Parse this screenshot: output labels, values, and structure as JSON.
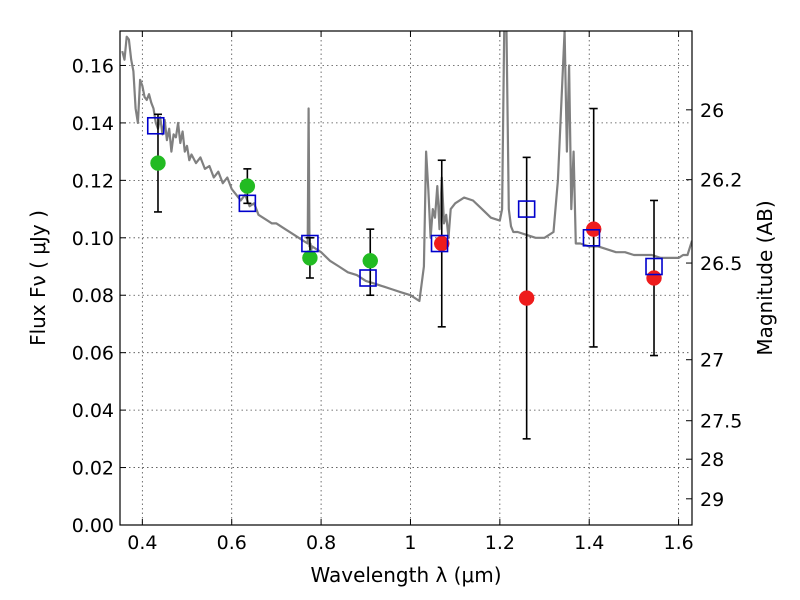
{
  "chart_data": {
    "type": "scatter",
    "title": "",
    "xlabel": "Wavelength  λ (μm)",
    "ylabel": "Flux  Fν  ( μJy )",
    "ylabel_right": "Magnitude (AB)",
    "xlim": [
      0.35,
      1.63
    ],
    "ylim": [
      0,
      0.172
    ],
    "grid": true,
    "x_ticks": [
      {
        "value": 0.4,
        "label": "0.4"
      },
      {
        "value": 0.6,
        "label": "0.6"
      },
      {
        "value": 0.8,
        "label": "0.8"
      },
      {
        "value": 1.0,
        "label": "1"
      },
      {
        "value": 1.2,
        "label": "1.2"
      },
      {
        "value": 1.4,
        "label": "1.4"
      },
      {
        "value": 1.6,
        "label": "1.6"
      }
    ],
    "y_ticks": [
      {
        "value": 0.0,
        "label": "0.00"
      },
      {
        "value": 0.02,
        "label": "0.02"
      },
      {
        "value": 0.04,
        "label": "0.04"
      },
      {
        "value": 0.06,
        "label": "0.06"
      },
      {
        "value": 0.08,
        "label": "0.08"
      },
      {
        "value": 0.1,
        "label": "0.10"
      },
      {
        "value": 0.12,
        "label": "0.12"
      },
      {
        "value": 0.14,
        "label": "0.14"
      },
      {
        "value": 0.16,
        "label": "0.16"
      }
    ],
    "mag_ticks": [
      {
        "value": 26,
        "label": "26"
      },
      {
        "value": 26.2,
        "label": "26.2"
      },
      {
        "value": 26.5,
        "label": "26.5"
      },
      {
        "value": 27,
        "label": "27"
      },
      {
        "value": 27.5,
        "label": "27.5"
      },
      {
        "value": 28,
        "label": "28"
      },
      {
        "value": 29,
        "label": "29"
      }
    ],
    "colors": {
      "model": "#808080",
      "observed_optical": "#22bb22",
      "observed_nir": "#ee1c1c",
      "model_points": "#0000cc",
      "errorbar": "#000000"
    },
    "model_spectrum": {
      "name": "",
      "x": [
        0.355,
        0.36,
        0.365,
        0.37,
        0.375,
        0.38,
        0.385,
        0.39,
        0.395,
        0.4,
        0.405,
        0.41,
        0.415,
        0.42,
        0.425,
        0.43,
        0.435,
        0.44,
        0.445,
        0.45,
        0.455,
        0.46,
        0.465,
        0.47,
        0.475,
        0.48,
        0.485,
        0.49,
        0.495,
        0.5,
        0.505,
        0.51,
        0.52,
        0.53,
        0.54,
        0.55,
        0.56,
        0.57,
        0.58,
        0.59,
        0.6,
        0.61,
        0.62,
        0.63,
        0.64,
        0.65,
        0.66,
        0.67,
        0.68,
        0.69,
        0.7,
        0.72,
        0.74,
        0.76,
        0.77,
        0.772,
        0.774,
        0.776,
        0.778,
        0.78,
        0.8,
        0.82,
        0.84,
        0.86,
        0.88,
        0.9,
        0.92,
        0.94,
        0.96,
        0.98,
        1.0,
        1.02,
        1.03,
        1.035,
        1.04,
        1.045,
        1.05,
        1.055,
        1.06,
        1.065,
        1.07,
        1.075,
        1.08,
        1.085,
        1.09,
        1.1,
        1.12,
        1.14,
        1.16,
        1.18,
        1.2,
        1.205,
        1.21,
        1.215,
        1.22,
        1.225,
        1.23,
        1.24,
        1.26,
        1.28,
        1.3,
        1.32,
        1.33,
        1.34,
        1.345,
        1.35,
        1.355,
        1.36,
        1.365,
        1.37,
        1.38,
        1.4,
        1.42,
        1.44,
        1.46,
        1.48,
        1.5,
        1.52,
        1.54,
        1.56,
        1.58,
        1.6,
        1.61,
        1.62,
        1.63
      ],
      "y": [
        0.165,
        0.162,
        0.17,
        0.169,
        0.162,
        0.158,
        0.145,
        0.14,
        0.155,
        0.153,
        0.149,
        0.148,
        0.15,
        0.147,
        0.145,
        0.14,
        0.138,
        0.142,
        0.136,
        0.141,
        0.134,
        0.138,
        0.13,
        0.136,
        0.135,
        0.14,
        0.133,
        0.137,
        0.13,
        0.132,
        0.127,
        0.129,
        0.126,
        0.128,
        0.124,
        0.125,
        0.121,
        0.123,
        0.119,
        0.121,
        0.117,
        0.115,
        0.113,
        0.115,
        0.111,
        0.112,
        0.108,
        0.107,
        0.106,
        0.105,
        0.105,
        0.103,
        0.101,
        0.099,
        0.098,
        0.145,
        0.097,
        0.098,
        0.096,
        0.097,
        0.095,
        0.092,
        0.09,
        0.088,
        0.087,
        0.085,
        0.084,
        0.083,
        0.082,
        0.081,
        0.08,
        0.078,
        0.09,
        0.13,
        0.117,
        0.1,
        0.11,
        0.107,
        0.118,
        0.103,
        0.121,
        0.105,
        0.108,
        0.1,
        0.11,
        0.112,
        0.114,
        0.113,
        0.11,
        0.107,
        0.106,
        0.11,
        0.175,
        0.172,
        0.11,
        0.104,
        0.102,
        0.102,
        0.101,
        0.1,
        0.1,
        0.102,
        0.12,
        0.155,
        0.172,
        0.13,
        0.16,
        0.11,
        0.13,
        0.098,
        0.098,
        0.097,
        0.097,
        0.096,
        0.095,
        0.095,
        0.094,
        0.094,
        0.094,
        0.093,
        0.093,
        0.093,
        0.094,
        0.094,
        0.099
      ]
    },
    "series": [
      {
        "name": "",
        "role": "observed_optical",
        "x": [
          0.435,
          0.635,
          0.775,
          0.91
        ],
        "values": [
          0.126,
          0.118,
          0.093,
          0.092
        ],
        "err_low": [
          0.017,
          0.006,
          0.007,
          0.012
        ],
        "err_high": [
          0.017,
          0.006,
          0.007,
          0.011
        ]
      },
      {
        "name": "",
        "role": "observed_nir",
        "x": [
          1.07,
          1.26,
          1.41,
          1.545
        ],
        "values": [
          0.098,
          0.079,
          0.103,
          0.086
        ],
        "err_low": [
          0.029,
          0.049,
          0.041,
          0.027
        ],
        "err_high": [
          0.029,
          0.049,
          0.042,
          0.027
        ]
      },
      {
        "name": "",
        "role": "model_points",
        "x": [
          0.43,
          0.635,
          0.775,
          0.905,
          1.065,
          1.26,
          1.405,
          1.545
        ],
        "values": [
          0.139,
          0.112,
          0.098,
          0.086,
          0.098,
          0.11,
          0.1,
          0.09
        ]
      }
    ]
  }
}
